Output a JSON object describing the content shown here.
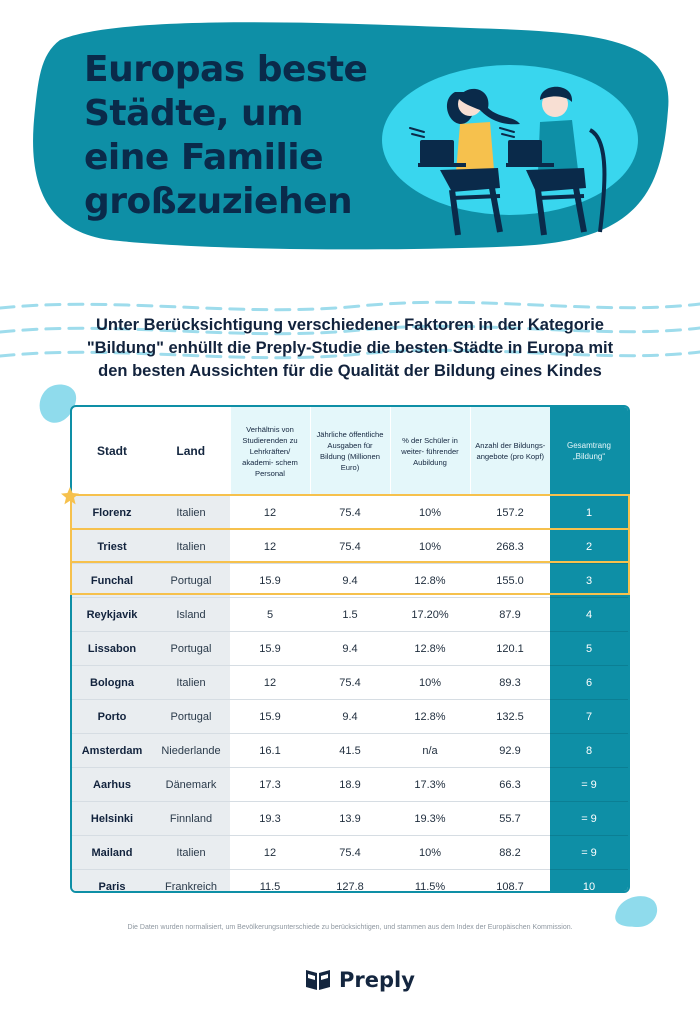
{
  "title": "Europas beste Städte, um eine Familie großzuziehen",
  "intro": "Unter Berücksichtigung verschiedener Faktoren in der Kategorie \"Bildung\" enhüllt die Preply-Studie die besten Städte in Europa mit den besten Aussichten für die Qualität der Bildung eines Kindes",
  "table": {
    "headers": {
      "city": "Stadt",
      "country": "Land",
      "ratio": "Verhältnis von Studierenden zu Lehrkräften/ akademi- schem Personal",
      "spending": "Jährliche öffentliche Ausgaben für Bildung (Millionen Euro)",
      "further": "% der Schüler in weiter- führender Aubildung",
      "offers": "Anzahl der Bildungs- angebote (pro Kopf)",
      "rank": "Gesamtrang „Bildung“"
    },
    "rows": [
      {
        "city": "Florenz",
        "country": "Italien",
        "ratio": "12",
        "spending": "75.4",
        "further": "10%",
        "offers": "157.2",
        "rank": "1"
      },
      {
        "city": "Triest",
        "country": "Italien",
        "ratio": "12",
        "spending": "75.4",
        "further": "10%",
        "offers": "268.3",
        "rank": "2"
      },
      {
        "city": "Funchal",
        "country": "Portugal",
        "ratio": "15.9",
        "spending": "9.4",
        "further": "12.8%",
        "offers": "155.0",
        "rank": "3"
      },
      {
        "city": "Reykjavik",
        "country": "Island",
        "ratio": "5",
        "spending": "1.5",
        "further": "17.20%",
        "offers": "87.9",
        "rank": "4"
      },
      {
        "city": "Lissabon",
        "country": "Portugal",
        "ratio": "15.9",
        "spending": "9.4",
        "further": "12.8%",
        "offers": "120.1",
        "rank": "5"
      },
      {
        "city": "Bologna",
        "country": "Italien",
        "ratio": "12",
        "spending": "75.4",
        "further": "10%",
        "offers": "89.3",
        "rank": "6"
      },
      {
        "city": "Porto",
        "country": "Portugal",
        "ratio": "15.9",
        "spending": "9.4",
        "further": "12.8%",
        "offers": "132.5",
        "rank": "7"
      },
      {
        "city": "Amsterdam",
        "country": "Niederlande",
        "ratio": "16.1",
        "spending": "41.5",
        "further": "n/a",
        "offers": "92.9",
        "rank": "8"
      },
      {
        "city": "Aarhus",
        "country": "Dänemark",
        "ratio": "17.3",
        "spending": "18.9",
        "further": "17.3%",
        "offers": "66.3",
        "rank": "= 9"
      },
      {
        "city": "Helsinki",
        "country": "Finnland",
        "ratio": "19.3",
        "spending": "13.9",
        "further": "19.3%",
        "offers": "55.7",
        "rank": "= 9"
      },
      {
        "city": "Mailand",
        "country": "Italien",
        "ratio": "12",
        "spending": "75.4",
        "further": "10%",
        "offers": "88.2",
        "rank": "= 9"
      },
      {
        "city": "Paris",
        "country": "Frankreich",
        "ratio": "11.5",
        "spending": "127.8",
        "further": "11.5%",
        "offers": "108.7",
        "rank": "10"
      }
    ]
  },
  "footnote": "Die Daten wurden normalisiert, um Bevölkerungsunterschiede zu berücksichtigen, und stammen aus dem Index der Europäischen Kommission.",
  "logo": {
    "text": "Preply",
    "icon": "preply-logo-icon"
  },
  "colors": {
    "teal": "#0e8fa6",
    "navy": "#0a2a4a",
    "highlight": "#f6c14d",
    "lightblue": "#8fdbec"
  }
}
